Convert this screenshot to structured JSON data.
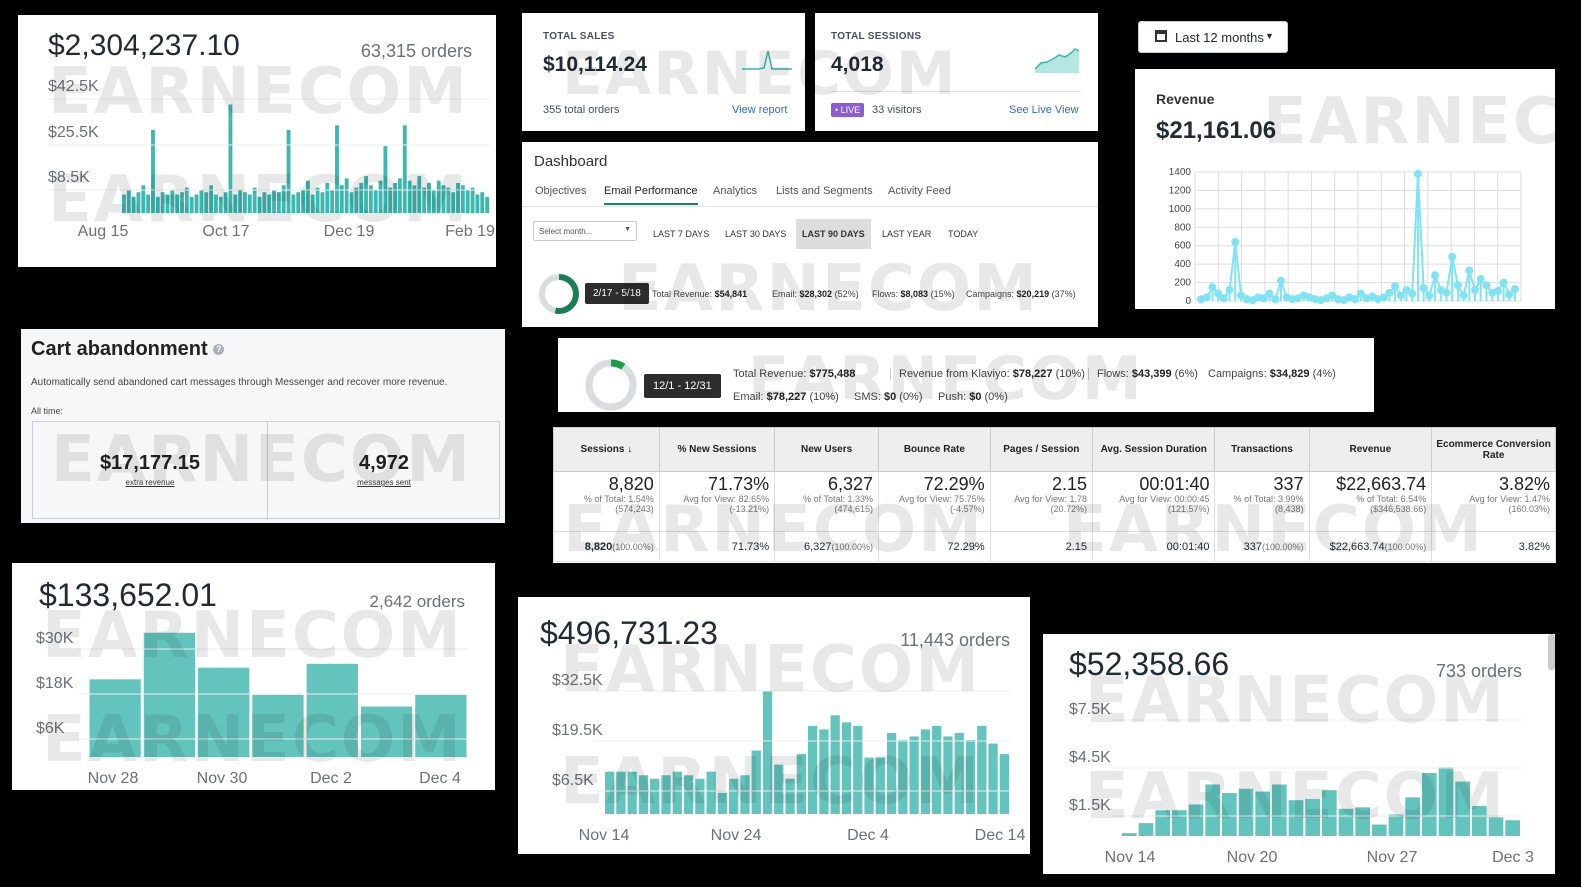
{
  "watermark": "EARNECOM",
  "colors": {
    "teal": "#3bb8b0",
    "teal_light": "#63c4bd",
    "cyan": "#7fe3f5",
    "live": "#8b5cd6",
    "link": "#2c6ecb"
  },
  "panel_a": {
    "total": "$2,304,237.10",
    "orders": "63,315 orders",
    "chart_data": {
      "type": "bar",
      "y_ticks": [
        "$42.5K",
        "$25.5K",
        "$8.5K"
      ],
      "x_labels": [
        "Aug 15",
        "Oct 17",
        "Dec 19",
        "Feb 19"
      ],
      "values": [
        8,
        10,
        7,
        9,
        12,
        8,
        36,
        7,
        9,
        8,
        10,
        8,
        9,
        11,
        7,
        8,
        10,
        9,
        12,
        8,
        7,
        9,
        47,
        8,
        10,
        9,
        8,
        11,
        7,
        9,
        8,
        10,
        9,
        12,
        36,
        8,
        9,
        10,
        14,
        8,
        11,
        9,
        13,
        10,
        38,
        12,
        15,
        9,
        11,
        13,
        16,
        12,
        10,
        14,
        29,
        11,
        13,
        15,
        38,
        14,
        12,
        16,
        11,
        13,
        10,
        14,
        12,
        11,
        9,
        13,
        12,
        10,
        11,
        8,
        9,
        7
      ]
    }
  },
  "panel_sales": {
    "sales_title": "TOTAL SALES",
    "sales_value": "$10,114.24",
    "sales_sub": "355 total orders",
    "sales_link": "View report",
    "sessions_title": "TOTAL SESSIONS",
    "sessions_value": "4,018",
    "live": "• LIVE",
    "visitors": "33 visitors",
    "sessions_link": "See Live View"
  },
  "panel_dashboard": {
    "title": "Dashboard",
    "tabs": [
      "Objectives",
      "Email Performance",
      "Analytics",
      "Lists and Segments",
      "Activity Feed"
    ],
    "select": "Select month...",
    "ranges": [
      "LAST 7 DAYS",
      "LAST 30 DAYS",
      "LAST 90 DAYS",
      "LAST YEAR",
      "TODAY"
    ],
    "date": "2/17 - 5/18",
    "stats": {
      "total_label": "Total Revenue:",
      "total": "$54,841",
      "email_label": "Email:",
      "email": "$28,302",
      "email_pct": "(52%)",
      "flows_label": "Flows:",
      "flows": "$8,083",
      "flows_pct": "(15%)",
      "campaigns_label": "Campaigns:",
      "campaigns": "$20,219",
      "campaigns_pct": "(37%)"
    }
  },
  "panel_revenue": {
    "filter": "Last 12 months",
    "label": "Revenue",
    "value": "$21,161.06",
    "chart_data": {
      "type": "line",
      "y_ticks": [
        "1400",
        "1200",
        "1000",
        "800",
        "600",
        "400",
        "200",
        "0"
      ],
      "ylim": [
        0,
        1400
      ],
      "values": [
        20,
        40,
        150,
        80,
        30,
        120,
        640,
        60,
        20,
        10,
        40,
        30,
        80,
        20,
        220,
        40,
        20,
        30,
        60,
        40,
        20,
        10,
        30,
        60,
        20,
        10,
        40,
        20,
        80,
        30,
        50,
        20,
        40,
        90,
        160,
        60,
        120,
        80,
        1380,
        140,
        60,
        280,
        120,
        90,
        480,
        170,
        60,
        330,
        120,
        240,
        170,
        90,
        110,
        200,
        70,
        130
      ]
    }
  },
  "panel_cart": {
    "title": "Cart abandonment",
    "desc": "Automatically send abandoned cart messages through Messenger and recover more revenue.",
    "all_time": "All time:",
    "revenue": "$17,177.15",
    "revenue_label": "extra revenue",
    "messages": "4,972",
    "messages_label": "messages sent"
  },
  "panel_klaviyo": {
    "date": "12/1 - 12/31",
    "total_label": "Total Revenue:",
    "total": "$775,488",
    "klaviyo_label": "Revenue from Klaviyo:",
    "klaviyo": "$78,227",
    "klaviyo_pct": "(10%)",
    "flows_label": "Flows:",
    "flows": "$43,399",
    "flows_pct": "(6%)",
    "campaigns_label": "Campaigns:",
    "campaigns": "$34,829",
    "campaigns_pct": "(4%)",
    "email_label": "Email:",
    "email": "$78,227",
    "email_pct": "(10%)",
    "sms_label": "SMS:",
    "sms": "$0",
    "sms_pct": "(0%)",
    "push_label": "Push:",
    "push": "$0",
    "push_pct": "(0%)"
  },
  "ga_table": {
    "headers": [
      "Sessions",
      "% New Sessions",
      "New Users",
      "Bounce Rate",
      "Pages / Session",
      "Avg. Session Duration",
      "Transactions",
      "Revenue",
      "Ecommerce Conversion Rate"
    ],
    "main": [
      "8,820",
      "71.73%",
      "6,327",
      "72.29%",
      "2.15",
      "00:01:40",
      "337",
      "$22,663.74",
      "3.82%"
    ],
    "sub1": [
      "% of Total: 1.54%",
      "Avg for View: 82.65%",
      "% of Total: 1.33%",
      "Avg for View: 75.75%",
      "Avg for View: 1.78",
      "Avg for View: 00:00:45",
      "% of Total: 3.99%",
      "% of Total: 6.54%",
      "Avg for View: 1.47%"
    ],
    "sub2": [
      "(574,243)",
      "(-13.21%)",
      "(474,615)",
      "(-4.57%)",
      "(20.72%)",
      "(121.57%)",
      "(8,438)",
      "($346,538.66)",
      "(160.03%)"
    ],
    "row": [
      "8,820",
      "71.73%",
      "6,327",
      "72.29%",
      "2.15",
      "00:01:40",
      "337",
      "$22,663.74",
      "3.82%"
    ],
    "row_pct": [
      "(100.00%)",
      "",
      "(100.00%)",
      "",
      "",
      "",
      "(100.00%)",
      "(100.00%)",
      ""
    ]
  },
  "panel_c": {
    "total": "$133,652.01",
    "orders": "2,642 orders",
    "chart_data": {
      "type": "bar",
      "y_ticks": [
        "$30K",
        "$18K",
        "$6K"
      ],
      "ylim": [
        0,
        34
      ],
      "x_labels": [
        "Nov 28",
        "Nov 30",
        "Dec 2",
        "Dec 4"
      ],
      "values": [
        20,
        32,
        23,
        16,
        24,
        13,
        16
      ]
    }
  },
  "panel_d": {
    "total": "$496,731.23",
    "orders": "11,443 orders",
    "chart_data": {
      "type": "bar",
      "y_ticks": [
        "$32.5K",
        "$19.5K",
        "$6.5K"
      ],
      "ylim": [
        0,
        40
      ],
      "x_labels": [
        "Nov 14",
        "Nov 24",
        "Dec 4",
        "Dec 14"
      ],
      "values": [
        12,
        12,
        12,
        11,
        10,
        11,
        12,
        11,
        10,
        12,
        6,
        10,
        11,
        18,
        35,
        14,
        10,
        17,
        25,
        24,
        28,
        26,
        25,
        16,
        16,
        23,
        21,
        22,
        24,
        25,
        22,
        23,
        21,
        25,
        20,
        17
      ]
    }
  },
  "panel_e": {
    "total": "$52,358.66",
    "orders": "733 orders",
    "chart_data": {
      "type": "bar",
      "y_ticks": [
        "$7.5K",
        "$4.5K",
        "$1.5K"
      ],
      "ylim": [
        0,
        8.8
      ],
      "x_labels": [
        "Nov 14",
        "Nov 20",
        "Nov 27",
        "Dec 3"
      ],
      "values": [
        0.2,
        0.9,
        1.8,
        1.8,
        2.2,
        3.6,
        3.0,
        3.3,
        3.1,
        3.6,
        2.5,
        2.6,
        3.2,
        1.9,
        2.0,
        0.8,
        1.5,
        2.7,
        4.4,
        4.8,
        3.8,
        2.1,
        1.3,
        1.1
      ]
    }
  }
}
